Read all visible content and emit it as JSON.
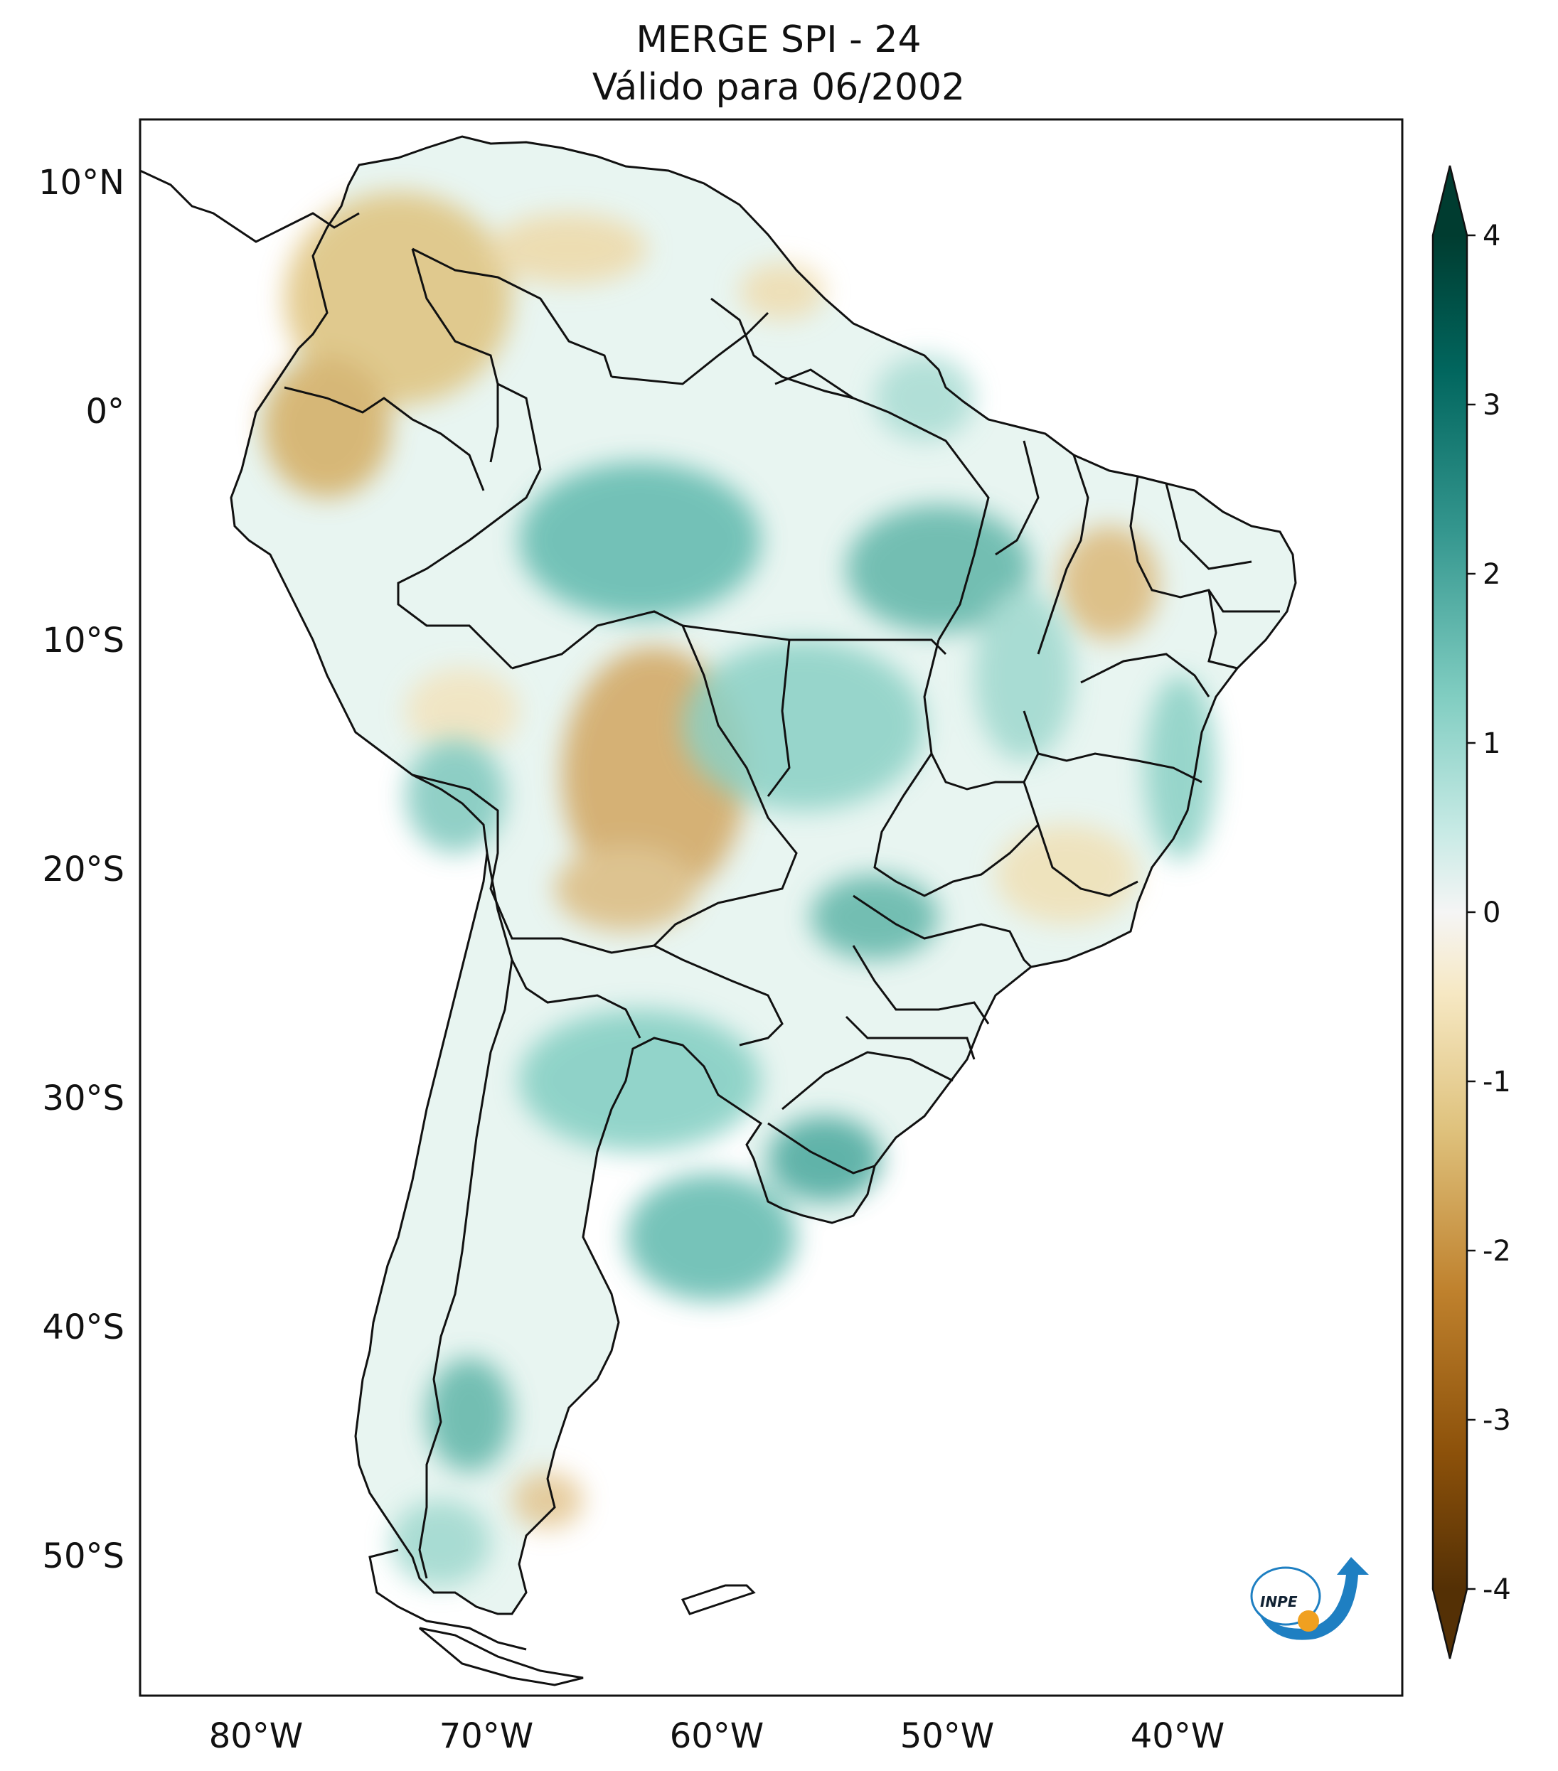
{
  "title": {
    "line1": "MERGE   SPI - 24",
    "line2": "Válido para 06/2002"
  },
  "map": {
    "lat_ticks": [
      "10°N",
      "0°",
      "10°S",
      "20°S",
      "30°S",
      "40°S",
      "50°S"
    ],
    "lon_ticks": [
      "80°W",
      "70°W",
      "60°W",
      "50°W",
      "40°W"
    ]
  },
  "colorbar": {
    "ticks": [
      "4",
      "3",
      "2",
      "1",
      "0",
      "-1",
      "-2",
      "-3",
      "-4"
    ],
    "min": -4,
    "max": 4,
    "colors": {
      "dry_extreme": "#543005",
      "dry_strong": "#8c510a",
      "dry_moderate": "#bf812d",
      "dry_mild": "#dfc27d",
      "dry_slight": "#f6e8c3",
      "neutral": "#f5f5f5",
      "wet_slight": "#c7eae5",
      "wet_mild": "#80cdc1",
      "wet_moderate": "#35978f",
      "wet_strong": "#01665e",
      "wet_extreme": "#003c30"
    }
  },
  "logo": {
    "label": "INPE",
    "accent_color": "#1e7fc2",
    "dot_color": "#f0a020"
  }
}
